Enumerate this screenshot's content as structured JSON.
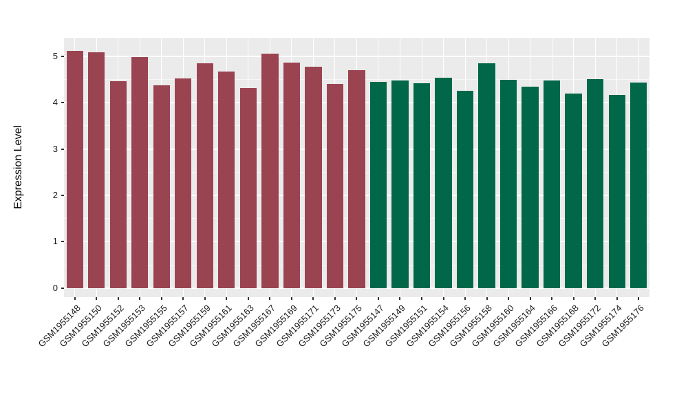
{
  "chart_data": {
    "type": "bar",
    "title": "",
    "xlabel": "",
    "ylabel": "Expression Level",
    "ylim": [
      0,
      5.4
    ],
    "yticks": [
      0,
      1,
      2,
      3,
      4,
      5
    ],
    "yticks_minor": [
      0.5,
      1.5,
      2.5,
      3.5,
      4.5
    ],
    "grid": "on",
    "legend_position": "none",
    "panel_background": "#EBEBEB",
    "grid_color": "#FFFFFF",
    "series": [
      {
        "name": "group-maroon",
        "color": "#9B4451",
        "categories": [
          "GSM1955148",
          "GSM1955150",
          "GSM1955152",
          "GSM1955153",
          "GSM1955155",
          "GSM1955157",
          "GSM1955159",
          "GSM1955161",
          "GSM1955163",
          "GSM1955167",
          "GSM1955169",
          "GSM1955171",
          "GSM1955173",
          "GSM1955175"
        ],
        "values": [
          5.11,
          5.08,
          4.46,
          4.98,
          4.38,
          4.52,
          4.85,
          4.67,
          4.32,
          5.05,
          4.86,
          4.77,
          4.4,
          4.7
        ]
      },
      {
        "name": "group-green",
        "color": "#006849",
        "categories": [
          "GSM1955147",
          "GSM1955149",
          "GSM1955151",
          "GSM1955154",
          "GSM1955156",
          "GSM1955158",
          "GSM1955160",
          "GSM1955164",
          "GSM1955166",
          "GSM1955168",
          "GSM1955172",
          "GSM1955174",
          "GSM1955176"
        ],
        "values": [
          4.45,
          4.48,
          4.42,
          4.54,
          4.26,
          4.85,
          4.49,
          4.34,
          4.47,
          4.2,
          4.5,
          4.16,
          4.43
        ]
      }
    ]
  }
}
